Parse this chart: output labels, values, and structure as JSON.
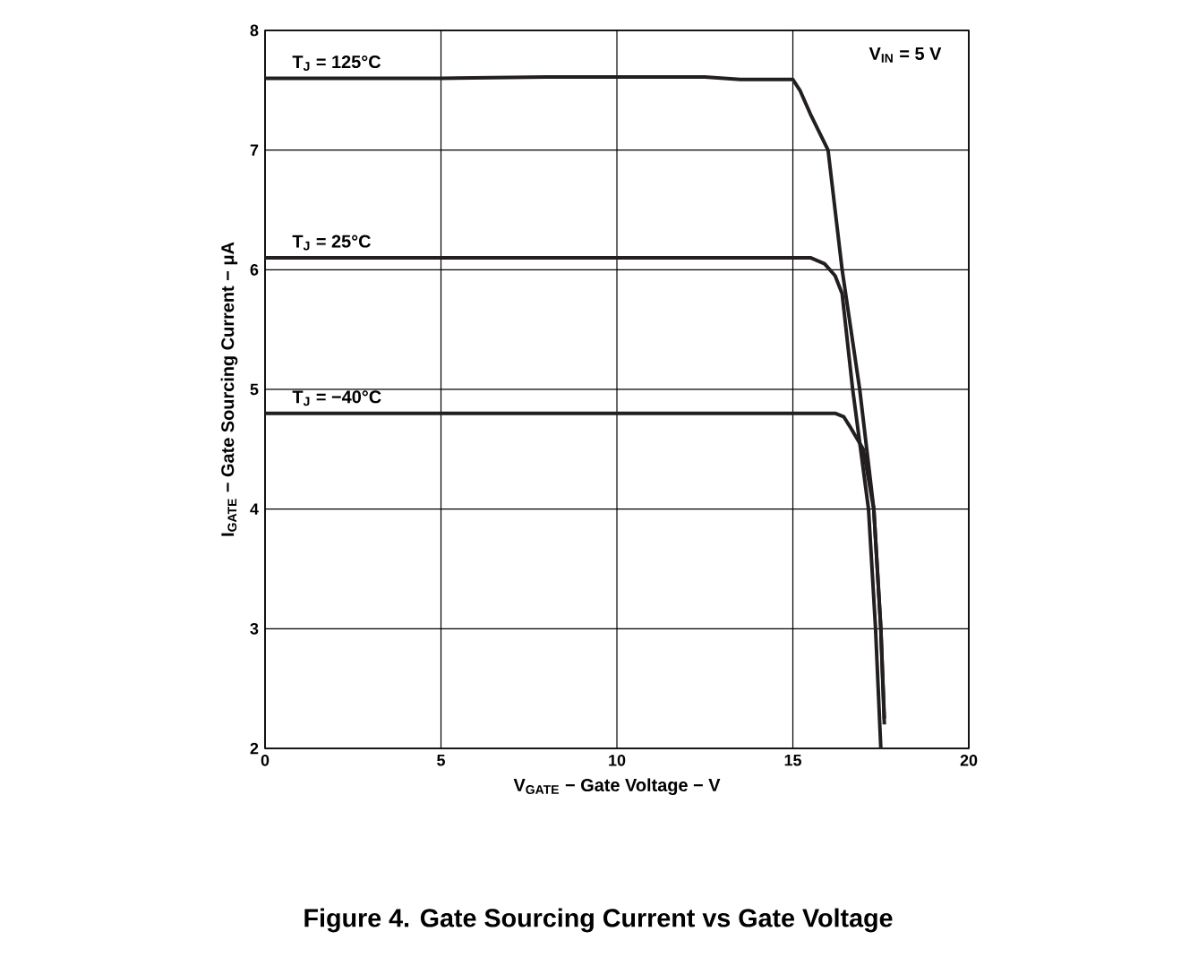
{
  "chart_data": {
    "type": "line",
    "title": "Figure 4. Gate Sourcing Current vs Gate Voltage",
    "xlabel": "V$_{GATE}$ − Gate Voltage − V",
    "ylabel": "I$_{GATE}$ − Gate Sourcing Current − μA",
    "xlim": [
      0,
      20
    ],
    "ylim": [
      2,
      8
    ],
    "xticks": [
      0,
      5,
      10,
      15,
      20
    ],
    "yticks": [
      2,
      3,
      4,
      5,
      6,
      7,
      8
    ],
    "grid": true,
    "legend": false,
    "marker": "none",
    "line_style": "solid",
    "annotations": [
      "V$_{IN}$ = 5 V"
    ],
    "series": [
      {
        "name": "T$_{J}$ = 125°C",
        "color": "#231f20",
        "x": [
          0,
          5,
          8,
          12.5,
          13.5,
          15,
          15.2,
          15.5,
          16.0,
          16.4,
          16.9,
          17.3,
          17.5,
          17.6
        ],
        "values": [
          7.6,
          7.6,
          7.61,
          7.61,
          7.59,
          7.59,
          7.5,
          7.3,
          7.0,
          6.0,
          5.0,
          4.0,
          3.0,
          2.2
        ]
      },
      {
        "name": "T$_{J}$ = 25°C",
        "color": "#231f20",
        "x": [
          0,
          10,
          15.5,
          15.9,
          16.2,
          16.4,
          16.7,
          17.15,
          17.35,
          17.5
        ],
        "values": [
          6.1,
          6.1,
          6.1,
          6.05,
          5.95,
          5.8,
          5.0,
          4.0,
          3.0,
          2.0
        ]
      },
      {
        "name": "T$_{J}$ = −40°C",
        "color": "#231f20",
        "x": [
          0,
          10,
          16.2,
          16.45,
          16.6,
          17.0,
          17.3,
          17.5,
          17.6
        ],
        "values": [
          4.8,
          4.8,
          4.8,
          4.77,
          4.7,
          4.5,
          4.0,
          3.0,
          2.25
        ]
      }
    ]
  }
}
